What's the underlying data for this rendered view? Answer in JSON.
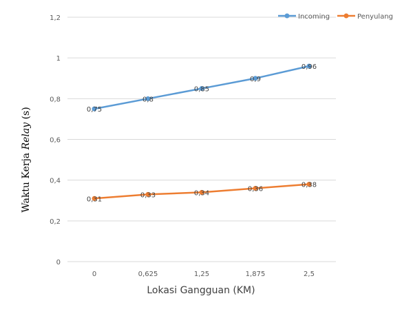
{
  "chart_data": {
    "type": "line",
    "categories": [
      "0",
      "0,625",
      "1,25",
      "1,875",
      "2,5"
    ],
    "series": [
      {
        "name": "Incoming",
        "color": "#5b9bd5",
        "values": [
          0.75,
          0.8,
          0.85,
          0.9,
          0.96
        ],
        "labels": [
          "0,75",
          "0,8",
          "0,85",
          "0,9",
          "0,96"
        ]
      },
      {
        "name": "Penyulang",
        "color": "#ed7d31",
        "values": [
          0.31,
          0.33,
          0.34,
          0.36,
          0.38
        ],
        "labels": [
          "0,31",
          "0,33",
          "0,34",
          "0,36",
          "0,38"
        ]
      }
    ],
    "xlabel": "Lokasi Gangguan (KM)",
    "ylabel": {
      "prefix": "Waktu Kerja ",
      "italic": "Relay",
      "suffix": " (s)"
    },
    "ylim": [
      0,
      1.2
    ],
    "yticks": [
      {
        "value": 0,
        "label": "0"
      },
      {
        "value": 0.2,
        "label": "0,2"
      },
      {
        "value": 0.4,
        "label": "0,4"
      },
      {
        "value": 0.6,
        "label": "0,6"
      },
      {
        "value": 0.8,
        "label": "0,8"
      },
      {
        "value": 1,
        "label": "1"
      },
      {
        "value": 1.2,
        "label": "1,2"
      }
    ],
    "grid": true,
    "legend_position": "top-right",
    "gridline_color": "#d9d9d9"
  }
}
